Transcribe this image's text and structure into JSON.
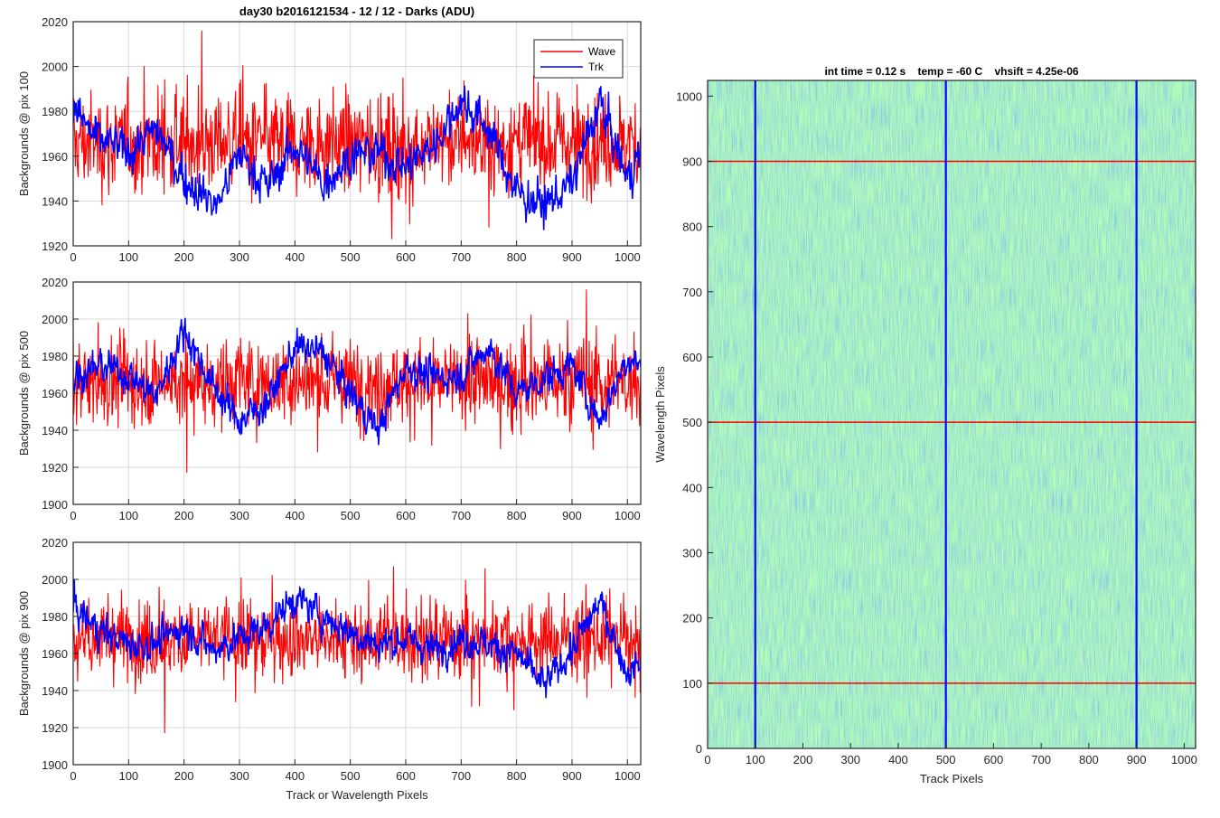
{
  "figure": {
    "title": "day30 b2016121534 - 12 / 12 - Darks (ADU)",
    "series_colors": {
      "Wave": "#ff0000",
      "Trk": "#0000ff"
    }
  },
  "chart_data": [
    {
      "type": "line",
      "title": "day30 b2016121534 - 12 / 12 - Darks (ADU)",
      "xlabel": "",
      "ylabel": "Backgrounds @ pix 100",
      "xlim": [
        0,
        1024
      ],
      "ylim": [
        1920,
        2020
      ],
      "xticks": [
        0,
        100,
        200,
        300,
        400,
        500,
        600,
        700,
        800,
        900,
        1000
      ],
      "yticks": [
        1920,
        1940,
        1960,
        1980,
        2000,
        2020
      ],
      "grid": true,
      "legend": {
        "placement": "top-right",
        "entries": [
          "Wave",
          "Trk"
        ]
      },
      "series": [
        {
          "name": "Wave",
          "color": "#ff0000",
          "mean": 1966,
          "noise_sd": 11,
          "spike_max": 2016,
          "spike_min": 1923
        },
        {
          "name": "Trk",
          "color": "#0000ff",
          "anchors": [
            [
              0,
              1982
            ],
            [
              40,
              1968
            ],
            [
              100,
              1962
            ],
            [
              150,
              1972
            ],
            [
              200,
              1950
            ],
            [
              260,
              1938
            ],
            [
              300,
              1962
            ],
            [
              350,
              1946
            ],
            [
              400,
              1965
            ],
            [
              450,
              1948
            ],
            [
              500,
              1960
            ],
            [
              550,
              1962
            ],
            [
              600,
              1955
            ],
            [
              650,
              1965
            ],
            [
              700,
              1985
            ],
            [
              750,
              1972
            ],
            [
              800,
              1944
            ],
            [
              850,
              1938
            ],
            [
              900,
              1948
            ],
            [
              950,
              1984
            ],
            [
              1000,
              1950
            ],
            [
              1024,
              1962
            ]
          ]
        }
      ]
    },
    {
      "type": "line",
      "xlabel": "",
      "ylabel": "Backgrounds @ pix 500",
      "xlim": [
        0,
        1024
      ],
      "ylim": [
        1900,
        2020
      ],
      "xticks": [
        0,
        100,
        200,
        300,
        400,
        500,
        600,
        700,
        800,
        900,
        1000
      ],
      "yticks": [
        1900,
        1920,
        1940,
        1960,
        1980,
        2000,
        2020
      ],
      "grid": true,
      "series": [
        {
          "name": "Wave",
          "color": "#ff0000",
          "mean": 1966,
          "noise_sd": 12,
          "spike_max": 2016,
          "spike_min": 1917
        },
        {
          "name": "Trk",
          "color": "#0000ff",
          "anchors": [
            [
              0,
              1968
            ],
            [
              50,
              1975
            ],
            [
              100,
              1970
            ],
            [
              150,
              1958
            ],
            [
              200,
              1995
            ],
            [
              250,
              1965
            ],
            [
              300,
              1945
            ],
            [
              350,
              1955
            ],
            [
              400,
              1985
            ],
            [
              450,
              1982
            ],
            [
              500,
              1960
            ],
            [
              550,
              1940
            ],
            [
              600,
              1975
            ],
            [
              650,
              1968
            ],
            [
              700,
              1970
            ],
            [
              750,
              1985
            ],
            [
              800,
              1960
            ],
            [
              850,
              1968
            ],
            [
              900,
              1975
            ],
            [
              950,
              1945
            ],
            [
              1000,
              1980
            ],
            [
              1024,
              1975
            ]
          ]
        }
      ]
    },
    {
      "type": "line",
      "xlabel": "Track or Wavelength Pixels",
      "ylabel": "Backgrounds @ pix 900",
      "xlim": [
        0,
        1024
      ],
      "ylim": [
        1900,
        2020
      ],
      "xticks": [
        0,
        100,
        200,
        300,
        400,
        500,
        600,
        700,
        800,
        900,
        1000
      ],
      "yticks": [
        1900,
        1920,
        1940,
        1960,
        1980,
        2000,
        2020
      ],
      "grid": true,
      "series": [
        {
          "name": "Wave",
          "color": "#ff0000",
          "mean": 1968,
          "noise_sd": 11,
          "spike_max": 2007,
          "spike_min": 1917
        },
        {
          "name": "Trk",
          "color": "#0000ff",
          "anchors": [
            [
              0,
              1985
            ],
            [
              50,
              1972
            ],
            [
              100,
              1965
            ],
            [
              150,
              1965
            ],
            [
              200,
              1975
            ],
            [
              250,
              1962
            ],
            [
              300,
              1968
            ],
            [
              350,
              1975
            ],
            [
              400,
              1990
            ],
            [
              450,
              1980
            ],
            [
              500,
              1972
            ],
            [
              550,
              1965
            ],
            [
              600,
              1968
            ],
            [
              650,
              1962
            ],
            [
              700,
              1968
            ],
            [
              750,
              1965
            ],
            [
              800,
              1960
            ],
            [
              850,
              1942
            ],
            [
              900,
              1962
            ],
            [
              950,
              1988
            ],
            [
              1000,
              1950
            ],
            [
              1024,
              1955
            ]
          ]
        }
      ]
    },
    {
      "type": "heatmap",
      "title": "int time = 0.12 s    temp = -60 C    vhsift = 4.25e-06",
      "xlabel": "Track Pixels",
      "ylabel": "Wavelength Pixels",
      "xlim": [
        0,
        1024
      ],
      "ylim": [
        0,
        1024
      ],
      "xticks": [
        0,
        100,
        200,
        300,
        400,
        500,
        600,
        700,
        800,
        900,
        1000
      ],
      "yticks": [
        0,
        100,
        200,
        300,
        400,
        500,
        600,
        700,
        800,
        900,
        1000
      ],
      "grid": false,
      "colors": {
        "low": "#1f77b4",
        "mid": "#20a0a8",
        "high": "#bfd45a"
      },
      "vertical_markers": {
        "x": [
          100,
          500,
          900
        ],
        "color": "#0000ff"
      },
      "horizontal_markers": {
        "y": [
          100,
          500,
          900
        ],
        "color": "#ff0000"
      }
    }
  ]
}
